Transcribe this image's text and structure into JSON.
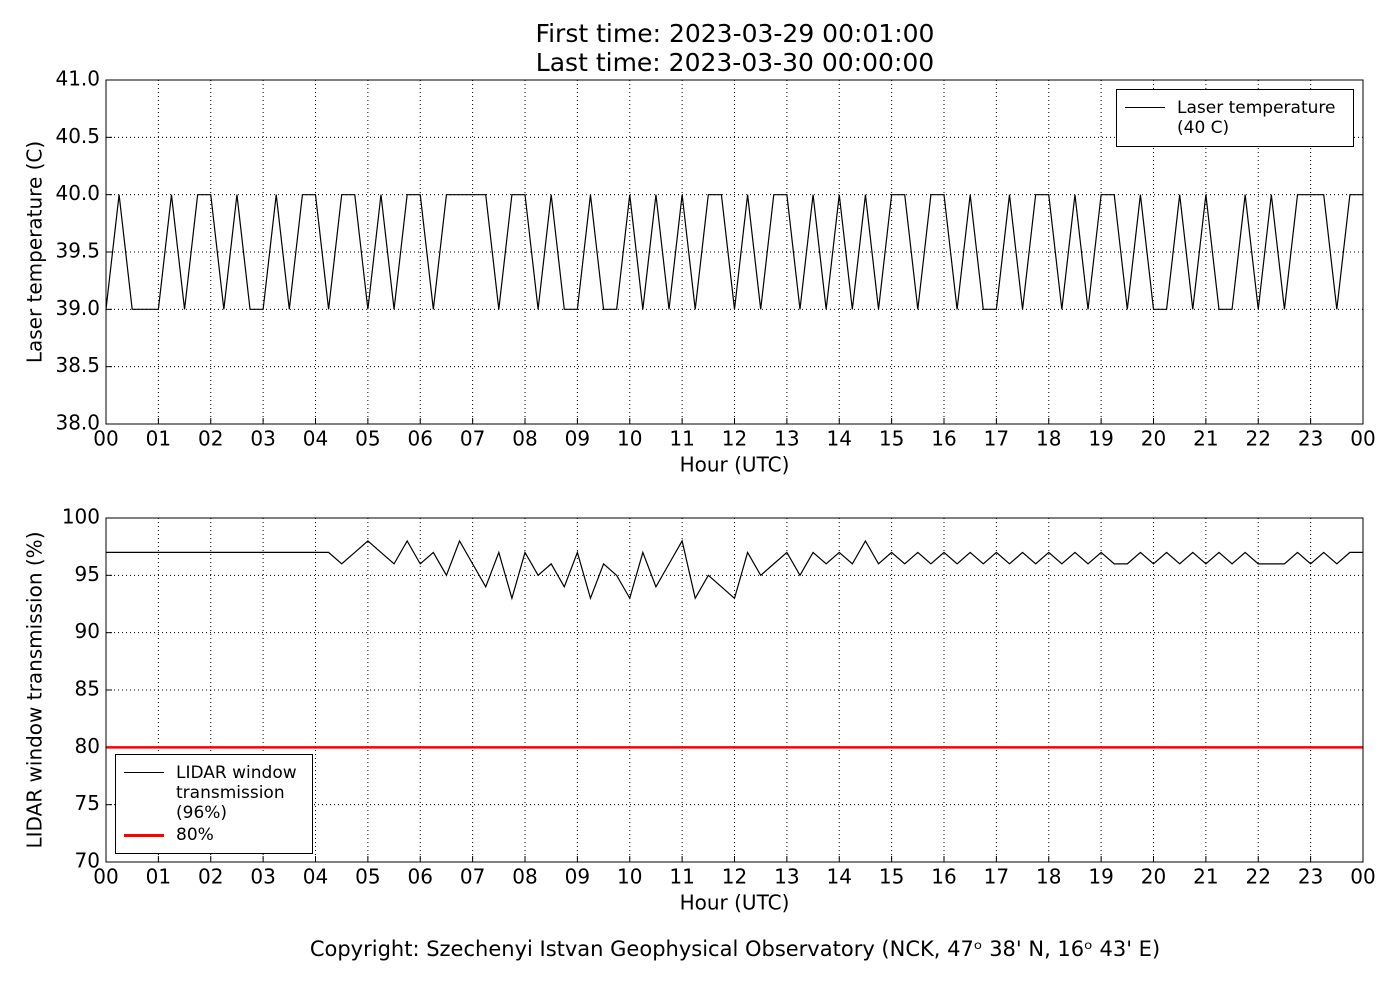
{
  "title_lines": [
    "First time: 2023-03-29 00:01:00",
    "Last time: 2023-03-30 00:00:00"
  ],
  "footer": "Copyright: Szechenyi Istvan Geophysical Observatory (NCK, 47ᵒ 38' N, 16ᵒ 43' E)",
  "chart_data": [
    {
      "type": "line",
      "xlabel": "Hour (UTC)",
      "ylabel": "Laser temperature (C)",
      "x": [
        0,
        0.25,
        0.5,
        0.75,
        1,
        1.25,
        1.5,
        1.75,
        2,
        2.25,
        2.5,
        2.75,
        3,
        3.25,
        3.5,
        3.75,
        4,
        4.25,
        4.5,
        4.75,
        5,
        5.25,
        5.5,
        5.75,
        6,
        6.25,
        6.5,
        6.75,
        7,
        7.25,
        7.5,
        7.75,
        8,
        8.25,
        8.5,
        8.75,
        9,
        9.25,
        9.5,
        9.75,
        10,
        10.25,
        10.5,
        10.75,
        11,
        11.25,
        11.5,
        11.75,
        12,
        12.25,
        12.5,
        12.75,
        13,
        13.25,
        13.5,
        13.75,
        14,
        14.25,
        14.5,
        14.75,
        15,
        15.25,
        15.5,
        15.75,
        16,
        16.25,
        16.5,
        16.75,
        17,
        17.25,
        17.5,
        17.75,
        18,
        18.25,
        18.5,
        18.75,
        19,
        19.25,
        19.5,
        19.75,
        20,
        20.25,
        20.5,
        20.75,
        21,
        21.25,
        21.5,
        21.75,
        22,
        22.25,
        22.5,
        22.75,
        23,
        23.25,
        23.5,
        23.75,
        24
      ],
      "series": [
        {
          "name": "Laser temperature (40 C)",
          "color": "#000000",
          "values": [
            39,
            40,
            39,
            39,
            39,
            40,
            39,
            40,
            40,
            39,
            40,
            39,
            39,
            40,
            39,
            40,
            40,
            39,
            40,
            40,
            39,
            40,
            39,
            40,
            40,
            39,
            40,
            40,
            40,
            40,
            39,
            40,
            40,
            39,
            40,
            39,
            39,
            40,
            39,
            39,
            40,
            39,
            40,
            39,
            40,
            39,
            40,
            40,
            39,
            40,
            39,
            40,
            40,
            39,
            40,
            39,
            40,
            39,
            40,
            39,
            40,
            40,
            39,
            40,
            40,
            39,
            40,
            39,
            39,
            40,
            39,
            40,
            40,
            39,
            40,
            39,
            40,
            40,
            39,
            40,
            39,
            39,
            40,
            39,
            40,
            39,
            39,
            40,
            39,
            40,
            39,
            40,
            40,
            40,
            39,
            40,
            40
          ]
        }
      ],
      "xlim": [
        0,
        24
      ],
      "xticks": [
        {
          "value": 0,
          "label": "00"
        },
        {
          "value": 1,
          "label": "01"
        },
        {
          "value": 2,
          "label": "02"
        },
        {
          "value": 3,
          "label": "03"
        },
        {
          "value": 4,
          "label": "04"
        },
        {
          "value": 5,
          "label": "05"
        },
        {
          "value": 6,
          "label": "06"
        },
        {
          "value": 7,
          "label": "07"
        },
        {
          "value": 8,
          "label": "08"
        },
        {
          "value": 9,
          "label": "09"
        },
        {
          "value": 10,
          "label": "10"
        },
        {
          "value": 11,
          "label": "11"
        },
        {
          "value": 12,
          "label": "12"
        },
        {
          "value": 13,
          "label": "13"
        },
        {
          "value": 14,
          "label": "14"
        },
        {
          "value": 15,
          "label": "15"
        },
        {
          "value": 16,
          "label": "16"
        },
        {
          "value": 17,
          "label": "17"
        },
        {
          "value": 18,
          "label": "18"
        },
        {
          "value": 19,
          "label": "19"
        },
        {
          "value": 20,
          "label": "20"
        },
        {
          "value": 21,
          "label": "21"
        },
        {
          "value": 22,
          "label": "22"
        },
        {
          "value": 23,
          "label": "23"
        },
        {
          "value": 24,
          "label": "00"
        }
      ],
      "ylim": [
        38,
        41
      ],
      "yticks": [
        {
          "value": 38,
          "label": "38.0"
        },
        38.5,
        {
          "value": 39,
          "label": "39.0"
        },
        39.5,
        {
          "value": 40,
          "label": "40.0"
        },
        40.5,
        {
          "value": 41,
          "label": "41.0"
        }
      ],
      "grid": true,
      "legend": "upper right"
    },
    {
      "type": "line",
      "xlabel": "Hour (UTC)",
      "ylabel": "LIDAR window transmission (%)",
      "x": [
        0,
        0.25,
        0.5,
        0.75,
        1,
        1.25,
        1.5,
        1.75,
        2,
        2.25,
        2.5,
        2.75,
        3,
        3.25,
        3.5,
        3.75,
        4,
        4.25,
        4.5,
        4.75,
        5,
        5.25,
        5.5,
        5.75,
        6,
        6.25,
        6.5,
        6.75,
        7,
        7.25,
        7.5,
        7.75,
        8,
        8.25,
        8.5,
        8.75,
        9,
        9.25,
        9.5,
        9.75,
        10,
        10.25,
        10.5,
        10.75,
        11,
        11.25,
        11.5,
        11.75,
        12,
        12.25,
        12.5,
        12.75,
        13,
        13.25,
        13.5,
        13.75,
        14,
        14.25,
        14.5,
        14.75,
        15,
        15.25,
        15.5,
        15.75,
        16,
        16.25,
        16.5,
        16.75,
        17,
        17.25,
        17.5,
        17.75,
        18,
        18.25,
        18.5,
        18.75,
        19,
        19.25,
        19.5,
        19.75,
        20,
        20.25,
        20.5,
        20.75,
        21,
        21.25,
        21.5,
        21.75,
        22,
        22.25,
        22.5,
        22.75,
        23,
        23.25,
        23.5,
        23.75,
        24
      ],
      "series": [
        {
          "name": "LIDAR window transmission (96%)",
          "color": "#000000",
          "values": [
            97,
            97,
            97,
            97,
            97,
            97,
            97,
            97,
            97,
            97,
            97,
            97,
            97,
            97,
            97,
            97,
            97,
            97,
            96,
            97,
            98,
            97,
            96,
            98,
            96,
            97,
            95,
            98,
            96,
            94,
            97,
            93,
            97,
            95,
            96,
            94,
            97,
            93,
            96,
            95,
            93,
            97,
            94,
            96,
            98,
            93,
            95,
            94,
            93,
            97,
            95,
            96,
            97,
            95,
            97,
            96,
            97,
            96,
            98,
            96,
            97,
            96,
            97,
            96,
            97,
            96,
            97,
            96,
            97,
            96,
            97,
            96,
            97,
            96,
            97,
            96,
            97,
            96,
            96,
            97,
            96,
            97,
            96,
            97,
            96,
            97,
            96,
            97,
            96,
            96,
            96,
            97,
            96,
            97,
            96,
            97,
            97
          ]
        }
      ],
      "reference_lines": [
        {
          "name": "80%",
          "color": "#ff0000",
          "y": 80
        }
      ],
      "xlim": [
        0,
        24
      ],
      "xticks": [
        {
          "value": 0,
          "label": "00"
        },
        {
          "value": 1,
          "label": "01"
        },
        {
          "value": 2,
          "label": "02"
        },
        {
          "value": 3,
          "label": "03"
        },
        {
          "value": 4,
          "label": "04"
        },
        {
          "value": 5,
          "label": "05"
        },
        {
          "value": 6,
          "label": "06"
        },
        {
          "value": 7,
          "label": "07"
        },
        {
          "value": 8,
          "label": "08"
        },
        {
          "value": 9,
          "label": "09"
        },
        {
          "value": 10,
          "label": "10"
        },
        {
          "value": 11,
          "label": "11"
        },
        {
          "value": 12,
          "label": "12"
        },
        {
          "value": 13,
          "label": "13"
        },
        {
          "value": 14,
          "label": "14"
        },
        {
          "value": 15,
          "label": "15"
        },
        {
          "value": 16,
          "label": "16"
        },
        {
          "value": 17,
          "label": "17"
        },
        {
          "value": 18,
          "label": "18"
        },
        {
          "value": 19,
          "label": "19"
        },
        {
          "value": 20,
          "label": "20"
        },
        {
          "value": 21,
          "label": "21"
        },
        {
          "value": 22,
          "label": "22"
        },
        {
          "value": 23,
          "label": "23"
        },
        {
          "value": 24,
          "label": "00"
        }
      ],
      "ylim": [
        70,
        100
      ],
      "yticks": [
        70,
        75,
        80,
        85,
        90,
        95,
        100
      ],
      "grid": true,
      "legend": "lower left"
    }
  ]
}
